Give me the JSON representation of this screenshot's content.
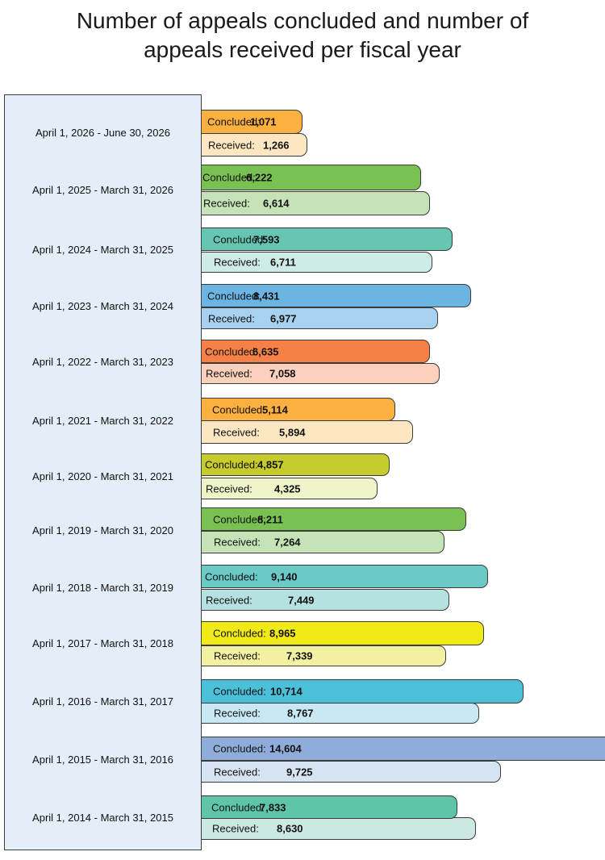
{
  "chart_data": {
    "type": "bar",
    "orientation": "horizontal",
    "title": [
      "Number of appeals concluded and number of",
      "appeals received per fiscal year"
    ],
    "xlabel": "",
    "ylabel": "",
    "grid": false,
    "legend": "none",
    "categories": [
      "April 1, 2026 - June 30, 2026",
      "April 1, 2025 - March 31, 2026",
      "April 1, 2024 - March 31, 2025",
      "April 1, 2023 - March 31, 2024",
      "April 1, 2022 - March 31, 2023",
      "April 1, 2021 - March 31, 2022",
      "April 1, 2020 - March 31, 2021",
      "April 1, 2019 - March 31, 2020",
      "April 1, 2018 - March 31, 2019",
      "April 1, 2017 - March 31, 2018",
      "April 1, 2016 - March 31, 2017",
      "April 1, 2015 - March 31, 2016",
      "April 1, 2014 - March 31, 2015"
    ],
    "series": [
      {
        "bar_label": "Concluded:",
        "values": [
          1071,
          6222,
          7593,
          8431,
          6635,
          5114,
          4857,
          8211,
          9140,
          8965,
          10714,
          14604,
          7833
        ],
        "display_values": [
          "1,071",
          "6,222",
          "7,593",
          "8,431",
          "6,635",
          "5,114",
          "4,857",
          "8,211",
          "9,140",
          "8,965",
          "10,714",
          "14,604",
          "7,833"
        ],
        "colors": [
          "#fbb040",
          "#78c152",
          "#67c6b2",
          "#6cb4e2",
          "#f58148",
          "#fbb040",
          "#c6cc2c",
          "#78c152",
          "#6ccac6",
          "#f1ea16",
          "#4cc0d8",
          "#8fadda",
          "#5ec5a8"
        ]
      },
      {
        "bar_label": "Received:",
        "values": [
          1266,
          6614,
          6711,
          6977,
          7058,
          5894,
          4325,
          7264,
          7449,
          7339,
          8767,
          9725,
          8630
        ],
        "display_values": [
          "1,266",
          "6,614",
          "6,711",
          "6,977",
          "7,058",
          "5,894",
          "4,325",
          "7,264",
          "7,449",
          "7,339",
          "8,767",
          "9,725",
          "8,630"
        ],
        "colors": [
          "#fde7c2",
          "#c6e3b8",
          "#cfebe7",
          "#a6d2f0",
          "#fbd0bc",
          "#fde7c2",
          "#eef4c8",
          "#c6e3b8",
          "#b5e1e1",
          "#f2f1a2",
          "#c8e9f4",
          "#d6e3f1",
          "#cce8e3"
        ]
      }
    ]
  }
}
